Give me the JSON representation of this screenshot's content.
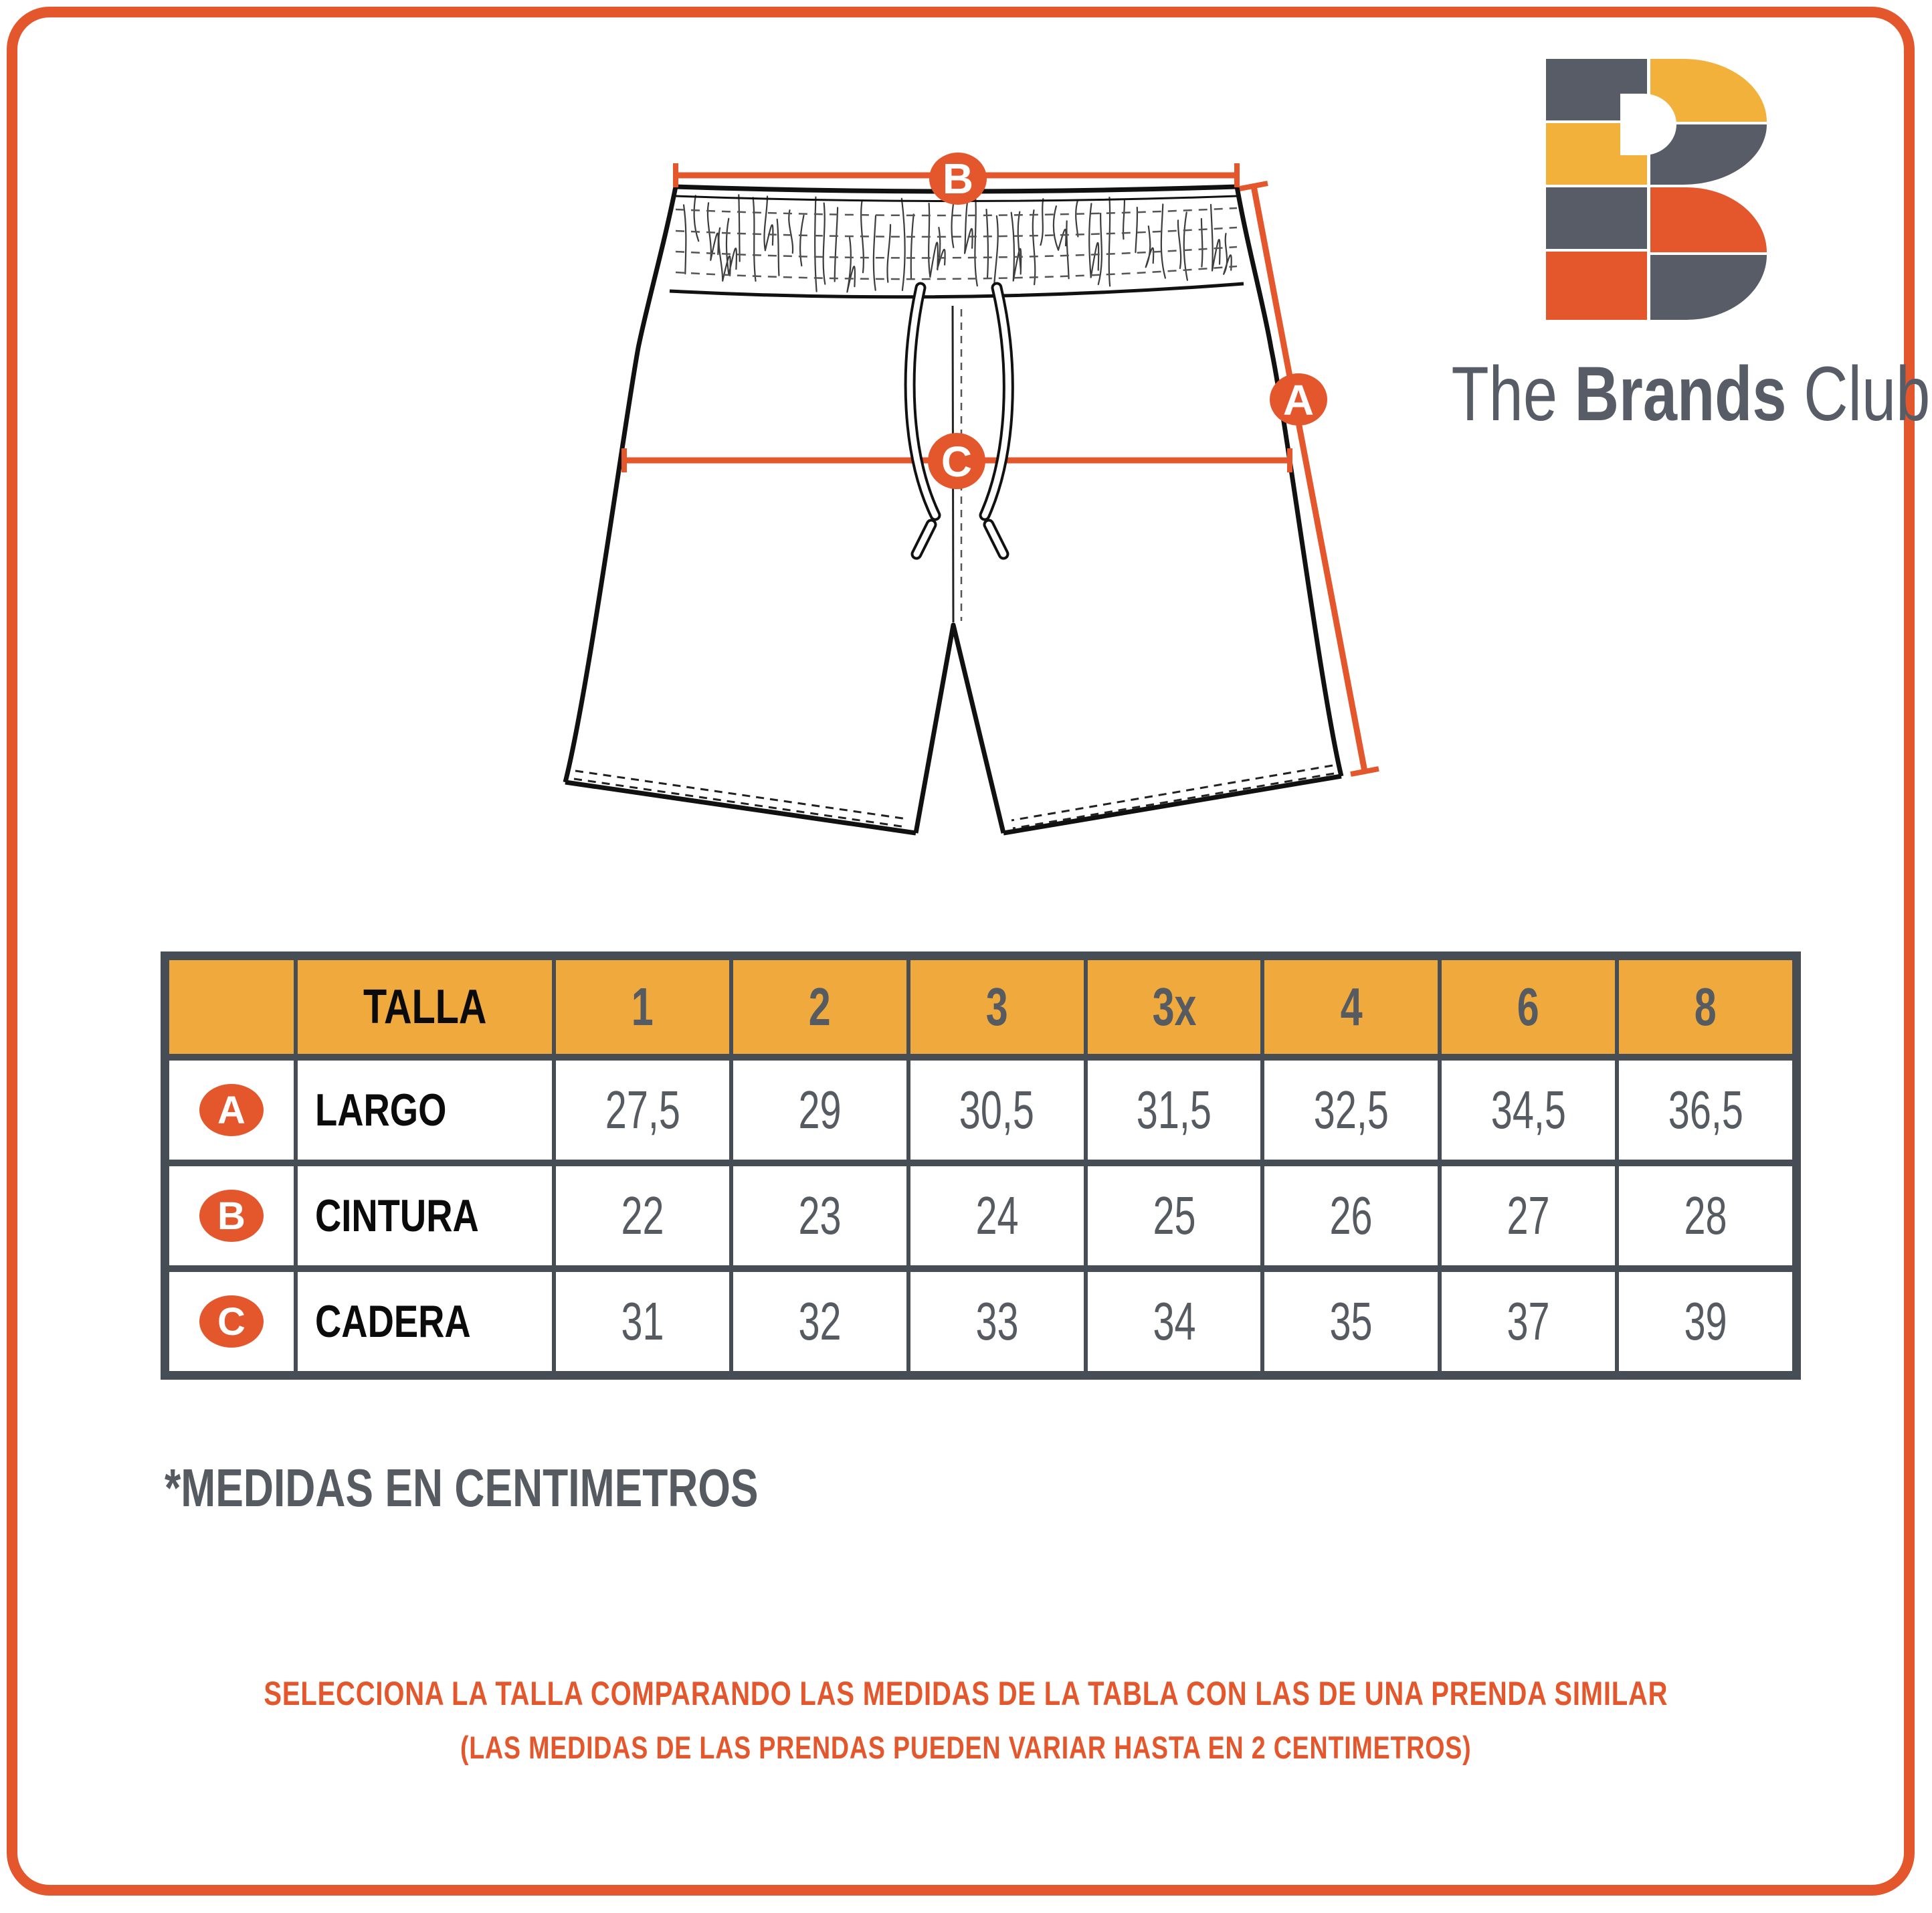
{
  "brand": {
    "logo_letter": "B",
    "name_the": "The ",
    "name_brands": "Brands ",
    "name_club": "Club"
  },
  "diagram": {
    "marker_a": "A",
    "marker_b": "B",
    "marker_c": "C"
  },
  "table": {
    "size_label": "TALLA",
    "sizes": [
      "1",
      "2",
      "3",
      "3x",
      "4",
      "6",
      "8"
    ],
    "rows": [
      {
        "marker": "A",
        "label": "LARGO",
        "values": [
          "27,5",
          "29",
          "30,5",
          "31,5",
          "32,5",
          "34,5",
          "36,5"
        ]
      },
      {
        "marker": "B",
        "label": "CINTURA",
        "values": [
          "22",
          "23",
          "24",
          "25",
          "26",
          "27",
          "28"
        ]
      },
      {
        "marker": "C",
        "label": "CADERA",
        "values": [
          "31",
          "32",
          "33",
          "34",
          "35",
          "37",
          "39"
        ]
      }
    ],
    "footnote": "*MEDIDAS EN CENTIMETROS"
  },
  "footer": {
    "line1": "SELECCIONA LA TALLA COMPARANDO LAS MEDIDAS DE LA TABLA CON LAS DE UNA PRENDA SIMILAR",
    "line2": "(LAS MEDIDAS DE LAS PRENDAS PUEDEN VARIAR HASTA EN 2 CENTIMETROS)"
  },
  "colors": {
    "accent_orange": "#E4562B",
    "header_yellow": "#F0A93C",
    "dark_gray": "#565B62",
    "border_gray": "#474D54",
    "logo_dark": "#575C66",
    "logo_yellow": "#F2B13B",
    "logo_orange": "#E4562B"
  }
}
